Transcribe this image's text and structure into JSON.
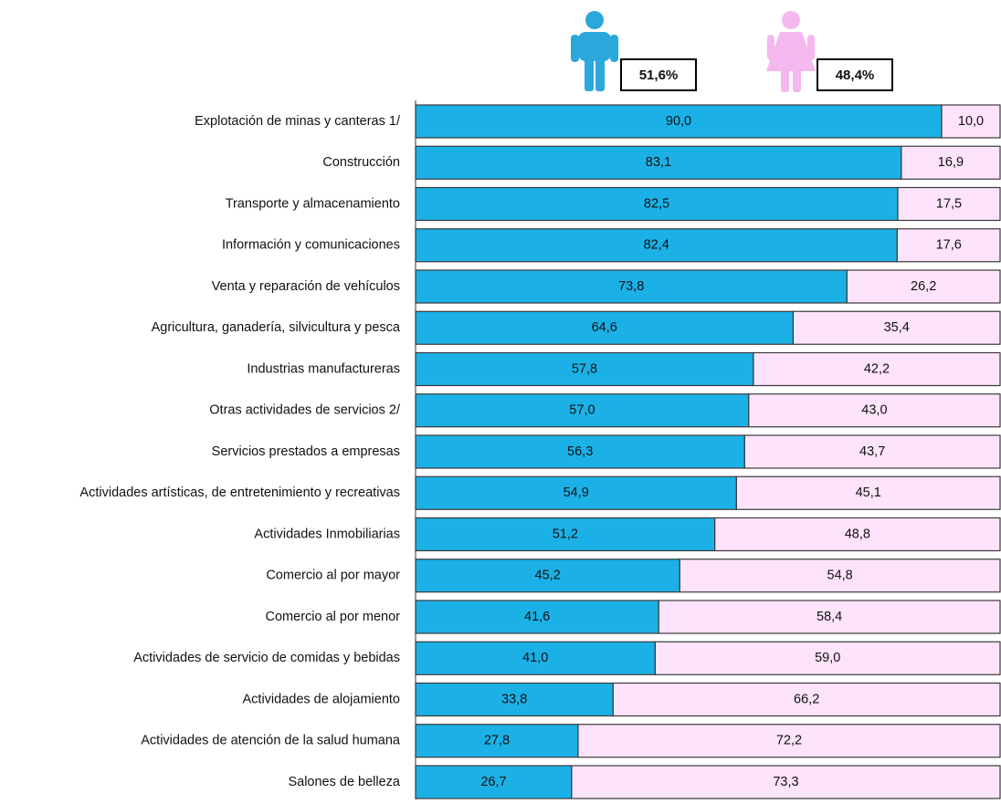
{
  "chart_data": {
    "type": "stacked-barh",
    "annotations": [
      "51,6%",
      "48,4%"
    ],
    "categories": [
      "Explotación de minas y canteras 1/",
      "Construcción",
      "Transporte y almacenamiento",
      "Información y comunicaciones",
      "Venta y reparación de vehículos",
      "Agricultura, ganadería, silvicultura y pesca",
      "Industrias manufactureras",
      "Otras actividades de servicios 2/",
      "Servicios prestados a empresas",
      "Actividades artísticas, de entretenimiento y recreativas",
      "Actividades Inmobiliarias",
      "Comercio al por mayor",
      "Comercio al por menor",
      "Actividades de servicio de comidas y bebidas",
      "Actividades de alojamiento",
      "Actividades de atención de la salud humana",
      "Salones de belleza"
    ],
    "series": [
      {
        "color": "#1cb1e6",
        "values": [
          90,
          83.1,
          82.5,
          82.4,
          73.8,
          64.6,
          57.8,
          57,
          56.3,
          54.9,
          51.2,
          45.2,
          41.6,
          41,
          33.8,
          27.8,
          26.7
        ],
        "value_labels": [
          "90,0",
          "83,1",
          "82,5",
          "82,4",
          "73,8",
          "64,6",
          "57,8",
          "57,0",
          "56,3",
          "54,9",
          "51,2",
          "45,2",
          "41,6",
          "41,0",
          "33,8",
          "27,8",
          "26,7"
        ]
      },
      {
        "color": "#fde3fb",
        "values": [
          10,
          16.9,
          17.5,
          17.6,
          26.2,
          35.4,
          42.2,
          43,
          43.7,
          45.1,
          48.8,
          54.8,
          58.4,
          59,
          66.2,
          72.2,
          73.3
        ],
        "value_labels": [
          "10,0",
          "16,9",
          "17,5",
          "17,6",
          "26,2",
          "35,4",
          "42,2",
          "43,0",
          "43,7",
          "45,1",
          "48,8",
          "54,8",
          "58,4",
          "59,0",
          "66,2",
          "72,2",
          "73,3"
        ]
      }
    ],
    "xlim": [
      0,
      100
    ]
  }
}
